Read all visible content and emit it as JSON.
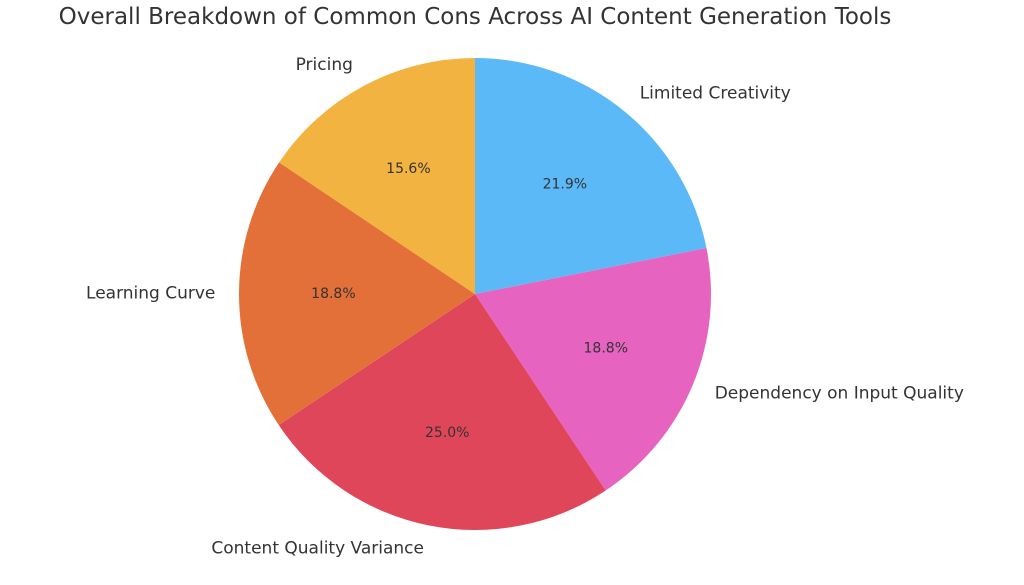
{
  "chart_data": {
    "type": "pie",
    "title": "Overall Breakdown of Common Cons Across AI Content Generation Tools",
    "start_angle": 90,
    "direction": "clockwise",
    "slices": [
      {
        "label": "Limited Creativity",
        "value": 21.9,
        "pct_label": "21.9%",
        "color": "#5cb9f7"
      },
      {
        "label": "Dependency on Input Quality",
        "value": 18.8,
        "pct_label": "18.8%",
        "color": "#e664bf"
      },
      {
        "label": "Content Quality Variance",
        "value": 25.0,
        "pct_label": "25.0%",
        "color": "#e0465a"
      },
      {
        "label": "Learning Curve",
        "value": 18.8,
        "pct_label": "18.8%",
        "color": "#e27038"
      },
      {
        "label": "Pricing",
        "value": 15.6,
        "pct_label": "15.6%",
        "color": "#f3b341"
      }
    ]
  }
}
